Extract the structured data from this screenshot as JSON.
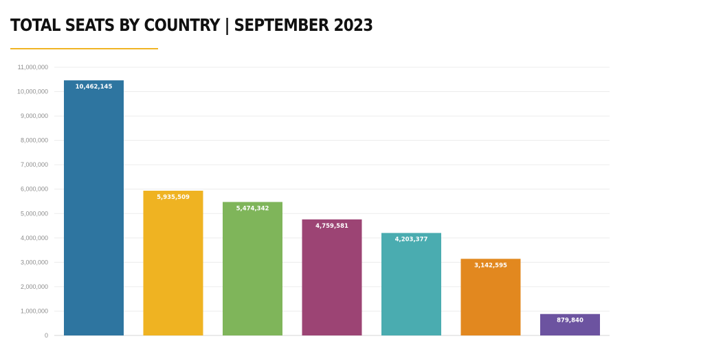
{
  "header": {
    "title": "TOTAL SEATS BY COUNTRY | SEPTEMBER 2023"
  },
  "colors": {
    "accent_rule": "#f0b323",
    "grid": "#ececec",
    "axis": "#d6d6d6"
  },
  "chart_data": {
    "type": "bar",
    "title": "TOTAL SEATS BY COUNTRY | SEPTEMBER 2023",
    "xlabel": "",
    "ylabel": "",
    "categories": [
      "",
      "",
      "",
      "",
      "",
      "",
      ""
    ],
    "values": [
      10462145,
      5935509,
      5474342,
      4759581,
      4203377,
      3142595,
      879840
    ],
    "data_labels": [
      "10,462,145",
      "5,935,509",
      "5,474,342",
      "4,759,581",
      "4,203,377",
      "3,142,595",
      "879,840"
    ],
    "bar_colors": [
      "#2e75a0",
      "#efb322",
      "#7fb55a",
      "#9c4474",
      "#4aacb0",
      "#e2881f",
      "#6c53a0"
    ],
    "ylim": [
      0,
      11000000
    ],
    "yticks": [
      0,
      1000000,
      2000000,
      3000000,
      4000000,
      5000000,
      6000000,
      7000000,
      8000000,
      9000000,
      10000000,
      11000000
    ],
    "ytick_labels": [
      "0",
      "1,000,000",
      "2,000,000",
      "3,000,000",
      "4,000,000",
      "5,000,000",
      "6,000,000",
      "7,000,000",
      "8,000,000",
      "9,000,000",
      "10,000,000",
      "11,000,000"
    ],
    "grid": true,
    "legend": "none"
  }
}
